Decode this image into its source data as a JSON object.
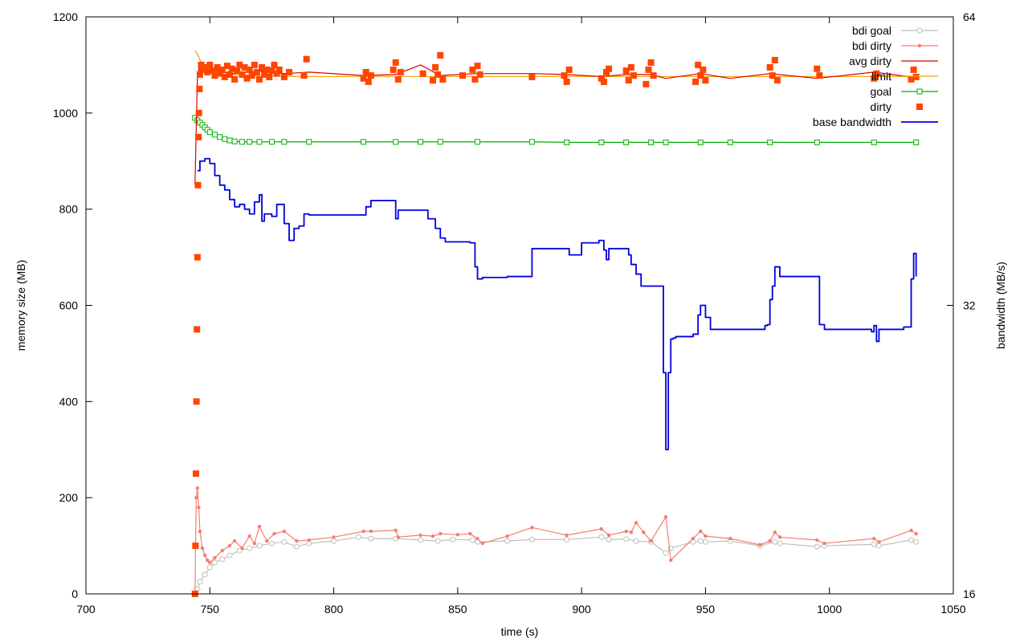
{
  "chart_data": {
    "type": "line",
    "title": "",
    "xlabel": "time (s)",
    "ylabel": "memory size (MB)",
    "y2label": "bandwidth (MB/s)",
    "xlim": [
      700,
      1050
    ],
    "ylim": [
      0,
      1200
    ],
    "y2lim": [
      16,
      64
    ],
    "xticks": [
      700,
      750,
      800,
      850,
      900,
      950,
      1000,
      1050
    ],
    "yticks": [
      0,
      200,
      400,
      600,
      800,
      1000,
      1200
    ],
    "y2ticks": [
      16,
      32,
      64
    ],
    "legend_position": "top-right",
    "series": [
      {
        "name": "bdi goal",
        "axis": "y",
        "color": "#bebebe",
        "marker": "circle-open",
        "line": true,
        "x": [
          744,
          745,
          746,
          748,
          750,
          752,
          755,
          758,
          762,
          766,
          770,
          775,
          780,
          785,
          790,
          800,
          810,
          815,
          825,
          835,
          842,
          848,
          856,
          858,
          870,
          880,
          894,
          908,
          911,
          918,
          922,
          928,
          934,
          936,
          945,
          948,
          950,
          960,
          972,
          978,
          980,
          995,
          998,
          1018,
          1020,
          1033,
          1035
        ],
        "y": [
          0,
          10,
          25,
          40,
          55,
          65,
          72,
          80,
          90,
          95,
          100,
          105,
          108,
          98,
          105,
          110,
          118,
          115,
          115,
          112,
          110,
          113,
          112,
          108,
          110,
          113,
          113,
          118,
          113,
          114,
          110,
          108,
          85,
          95,
          108,
          110,
          108,
          110,
          100,
          108,
          105,
          98,
          100,
          103,
          100,
          112,
          108
        ]
      },
      {
        "name": "bdi dirty",
        "axis": "y",
        "color": "#f47e72",
        "marker": "dot",
        "line": true,
        "x": [
          744,
          744.5,
          745,
          745.5,
          746,
          747,
          748,
          749,
          750,
          752,
          755,
          758,
          760,
          763,
          766,
          768,
          770,
          773,
          776,
          780,
          785,
          790,
          800,
          812,
          815,
          825,
          826,
          835,
          840,
          843,
          850,
          855,
          858,
          860,
          870,
          880,
          894,
          908,
          911,
          918,
          920,
          922,
          925,
          928,
          934,
          936,
          945,
          948,
          950,
          960,
          972,
          976,
          978,
          980,
          995,
          998,
          1018,
          1020,
          1033,
          1035
        ],
        "y": [
          0,
          200,
          220,
          180,
          130,
          95,
          80,
          70,
          65,
          75,
          90,
          100,
          110,
          95,
          120,
          105,
          140,
          110,
          125,
          130,
          110,
          112,
          118,
          130,
          130,
          132,
          118,
          122,
          120,
          125,
          123,
          125,
          115,
          105,
          120,
          138,
          122,
          135,
          122,
          130,
          128,
          148,
          128,
          110,
          160,
          70,
          115,
          130,
          120,
          115,
          102,
          110,
          128,
          118,
          112,
          105,
          115,
          108,
          132,
          125
        ]
      },
      {
        "name": "avg dirty",
        "axis": "y",
        "color": "#dc0000",
        "marker": "none",
        "line": true,
        "x": [
          744,
          745,
          746,
          748,
          750,
          755,
          760,
          770,
          780,
          790,
          812,
          825,
          835,
          843,
          858,
          880,
          894,
          908,
          918,
          928,
          934,
          948,
          960,
          976,
          995,
          1018,
          1033
        ],
        "y": [
          850,
          1080,
          1100,
          1092,
          1088,
          1085,
          1082,
          1088,
          1082,
          1085,
          1078,
          1080,
          1100,
          1078,
          1082,
          1082,
          1080,
          1076,
          1080,
          1080,
          1072,
          1082,
          1072,
          1082,
          1072,
          1085,
          1075
        ]
      },
      {
        "name": "limit",
        "axis": "y",
        "color": "#f0a000",
        "marker": "none",
        "line": true,
        "x": [
          744,
          745,
          746,
          748,
          750,
          760,
          780,
          850,
          950,
          1036
        ],
        "y": [
          1130,
          1122,
          1110,
          1098,
          1090,
          1080,
          1076,
          1076,
          1076,
          1076
        ]
      },
      {
        "name": "goal",
        "axis": "y",
        "color": "#00b000",
        "marker": "square-open",
        "line": true,
        "x": [
          744,
          745,
          746,
          747,
          748,
          749,
          750,
          752,
          754,
          756,
          758,
          760,
          763,
          766,
          770,
          775,
          780,
          790,
          812,
          825,
          835,
          843,
          858,
          880,
          894,
          908,
          918,
          928,
          934,
          948,
          960,
          976,
          995,
          1018,
          1035
        ],
        "y": [
          990,
          985,
          980,
          975,
          970,
          965,
          960,
          955,
          950,
          946,
          943,
          941,
          940,
          940,
          940,
          940,
          940,
          940,
          940,
          940,
          940,
          940,
          940,
          940,
          939,
          939,
          939,
          939,
          939,
          939,
          939,
          939,
          939,
          939,
          939
        ]
      },
      {
        "name": "dirty",
        "axis": "y",
        "color": "#ff4500",
        "marker": "square-filled",
        "line": false,
        "x": [
          744,
          744.2,
          744.4,
          744.6,
          744.8,
          745,
          745.2,
          745.4,
          745.6,
          745.8,
          746,
          746.5,
          747,
          748,
          749,
          750,
          751,
          752,
          753,
          754,
          755,
          756,
          757,
          758,
          759,
          760,
          761,
          762,
          763,
          764,
          765,
          766,
          767,
          768,
          769,
          770,
          771,
          772,
          773,
          774,
          775,
          776,
          777,
          778,
          780,
          782,
          788,
          789,
          812,
          813,
          814,
          815,
          824,
          825,
          826,
          827,
          836,
          840,
          841,
          842,
          843,
          844,
          852,
          856,
          857,
          858,
          859,
          880,
          893,
          894,
          895,
          908,
          909,
          910,
          911,
          918,
          919,
          920,
          921,
          926,
          927,
          928,
          929,
          946,
          947,
          948,
          949,
          950,
          976,
          977,
          978,
          979,
          995,
          996,
          1018,
          1019,
          1033,
          1034,
          1035
        ],
        "y": [
          0,
          100,
          250,
          400,
          550,
          700,
          850,
          950,
          1000,
          1050,
          1080,
          1100,
          1090,
          1095,
          1085,
          1100,
          1088,
          1078,
          1095,
          1082,
          1090,
          1075,
          1098,
          1080,
          1092,
          1070,
          1088,
          1100,
          1080,
          1095,
          1072,
          1090,
          1078,
          1100,
          1085,
          1070,
          1095,
          1080,
          1090,
          1075,
          1088,
          1100,
          1082,
          1090,
          1075,
          1085,
          1078,
          1112,
          1072,
          1085,
          1065,
          1078,
          1090,
          1105,
          1070,
          1085,
          1082,
          1068,
          1095,
          1080,
          1120,
          1070,
          1078,
          1090,
          1070,
          1098,
          1080,
          1075,
          1078,
          1065,
          1090,
          1072,
          1065,
          1085,
          1092,
          1088,
          1068,
          1095,
          1078,
          1060,
          1090,
          1105,
          1078,
          1065,
          1100,
          1078,
          1090,
          1068,
          1095,
          1078,
          1110,
          1068,
          1092,
          1078,
          1072,
          1082,
          1070,
          1090,
          1075
        ]
      },
      {
        "name": "base bandwidth",
        "axis": "y",
        "color": "#0000dc",
        "marker": "none",
        "line": true,
        "step": true,
        "x": [
          745,
          746,
          748,
          750,
          752,
          754,
          756,
          758,
          760,
          762,
          764,
          766,
          768,
          770,
          771,
          772,
          775,
          777,
          780,
          782,
          784,
          786,
          788,
          790,
          812,
          813,
          815,
          825,
          826,
          835,
          838,
          841,
          843,
          845,
          855,
          857,
          858,
          860,
          866,
          870,
          875,
          880,
          892,
          895,
          900,
          907,
          909,
          910,
          911,
          918,
          919,
          920,
          922,
          924,
          926,
          930,
          933,
          934,
          935,
          936,
          937,
          938,
          940,
          945,
          947,
          948,
          950,
          952,
          960,
          970,
          974,
          975,
          976,
          977,
          978,
          980,
          995,
          996,
          998,
          1017,
          1018,
          1019,
          1020,
          1030,
          1032,
          1033,
          1034,
          1035
        ],
        "y": [
          880,
          900,
          905,
          895,
          870,
          850,
          840,
          820,
          805,
          810,
          800,
          790,
          815,
          830,
          775,
          790,
          785,
          810,
          770,
          735,
          760,
          765,
          790,
          788,
          788,
          805,
          818,
          780,
          798,
          798,
          780,
          760,
          740,
          732,
          730,
          680,
          655,
          658,
          658,
          660,
          660,
          718,
          718,
          705,
          730,
          735,
          715,
          695,
          718,
          718,
          705,
          685,
          665,
          640,
          640,
          640,
          460,
          300,
          460,
          530,
          532,
          535,
          535,
          540,
          580,
          600,
          575,
          550,
          550,
          550,
          558,
          560,
          612,
          640,
          680,
          660,
          660,
          560,
          550,
          545,
          558,
          525,
          550,
          555,
          555,
          655,
          708,
          660
        ]
      }
    ]
  }
}
